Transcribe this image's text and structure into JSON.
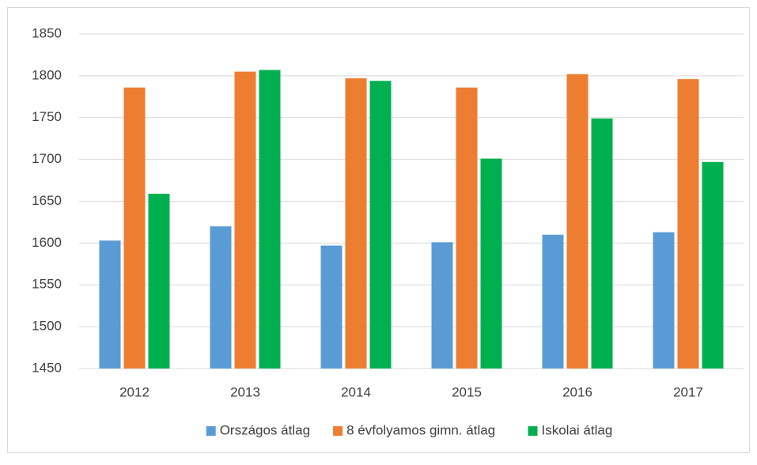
{
  "chart_data": {
    "type": "bar",
    "categories": [
      "2012",
      "2013",
      "2014",
      "2015",
      "2016",
      "2017"
    ],
    "series": [
      {
        "name": "Országos átlag",
        "color": "#5b9bd5",
        "values": [
          1603,
          1620,
          1597,
          1601,
          1610,
          1613
        ]
      },
      {
        "name": "8 évfolyamos gimn. átlag",
        "color": "#ed7d31",
        "values": [
          1786,
          1805,
          1797,
          1786,
          1802,
          1796
        ]
      },
      {
        "name": "Iskolai átlag",
        "color": "#00b050",
        "values": [
          1659,
          1807,
          1794,
          1701,
          1749,
          1697
        ]
      }
    ],
    "ylim": [
      1450,
      1850
    ],
    "yticks": [
      1450,
      1500,
      1550,
      1600,
      1650,
      1700,
      1750,
      1800,
      1850
    ],
    "grid": true,
    "legend": "bottom"
  }
}
